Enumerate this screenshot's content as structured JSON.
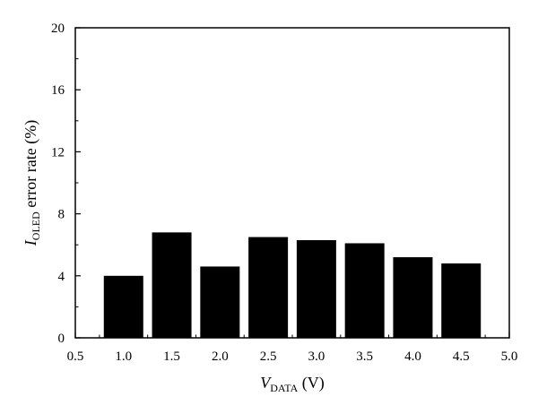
{
  "chart_data": {
    "type": "bar",
    "x": [
      1.0,
      1.5,
      2.0,
      2.5,
      3.0,
      3.5,
      4.0,
      4.5
    ],
    "values": [
      4.0,
      6.8,
      4.6,
      6.5,
      6.3,
      6.1,
      5.2,
      4.8
    ],
    "xlim": [
      0.5,
      5.0
    ],
    "ylim": [
      0,
      20
    ],
    "xticks": [
      "0.5",
      "1.0",
      "1.5",
      "2.0",
      "2.5",
      "3.0",
      "3.5",
      "4.0",
      "4.5",
      "5.0"
    ],
    "yticks": [
      "0",
      "4",
      "8",
      "12",
      "16",
      "20"
    ],
    "xlabel": {
      "main": "V",
      "sub": "DATA",
      "rest": " (V)"
    },
    "ylabel": {
      "main": "I",
      "sub": "OLED",
      "rest": " error rate (%)"
    },
    "grid": false,
    "bar_color": "#000000"
  }
}
